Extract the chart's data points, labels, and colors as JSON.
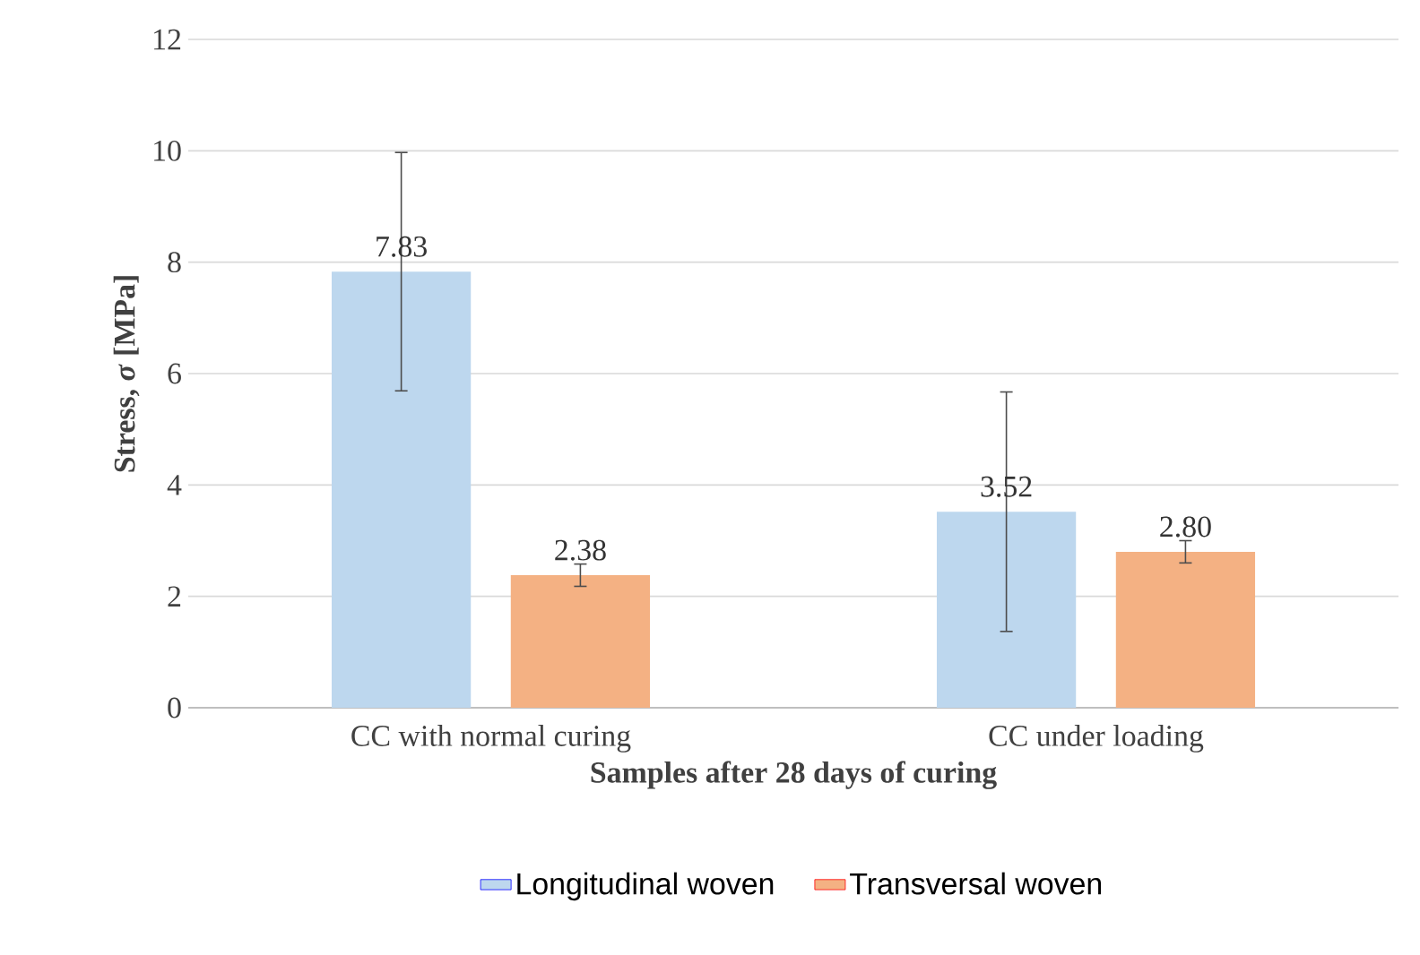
{
  "chart_data": {
    "type": "bar",
    "categories": [
      "CC with normal curing",
      "CC under loading"
    ],
    "series": [
      {
        "name": "Longitudinal woven",
        "color": "#bdd7ee",
        "values": [
          7.83,
          3.52
        ],
        "errors": [
          2.14,
          2.15
        ],
        "value_labels": [
          "7.83",
          "3.52"
        ]
      },
      {
        "name": "Transversal woven",
        "color": "#f4b183",
        "values": [
          2.38,
          2.8
        ],
        "errors": [
          0.2,
          0.2
        ],
        "value_labels": [
          "2.38",
          "2.80"
        ]
      }
    ],
    "xlabel": "Samples after 28 days of curing",
    "ylabel": "Stress, *σ* [MPa]",
    "ylim": [
      0,
      12
    ],
    "yticks": [
      0,
      2,
      4,
      6,
      8,
      10,
      12
    ],
    "grid": "y",
    "legend": "bottom"
  }
}
